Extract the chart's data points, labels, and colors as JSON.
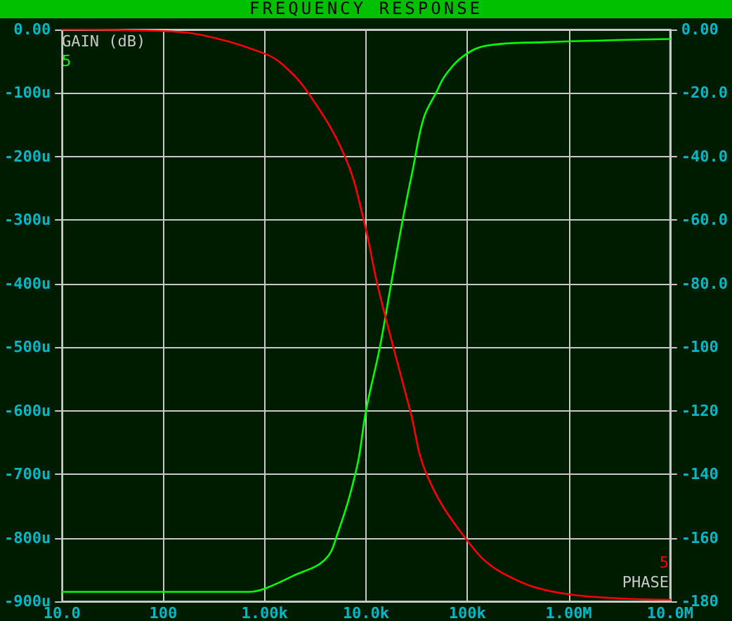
{
  "chart_data": {
    "type": "line",
    "title": "FREQUENCY RESPONSE",
    "ylabel": "GAIN (dB)",
    "y2label": "PHASE",
    "log": "x",
    "grid": true,
    "legend": false,
    "marker": "none",
    "line_style": "solid",
    "xlim": [
      10,
      10000000
    ],
    "xticks": [
      {
        "value": 10,
        "label": "10.0"
      },
      {
        "value": 100,
        "label": "100"
      },
      {
        "value": 1000,
        "label": "1.00k"
      },
      {
        "value": 10000,
        "label": "10.0k"
      },
      {
        "value": 100000,
        "label": "100k"
      },
      {
        "value": 1000000,
        "label": "1.00M"
      },
      {
        "value": 10000000,
        "label": "10.0M"
      }
    ],
    "ylim": [
      -900,
      0
    ],
    "yticks": [
      {
        "value": 0,
        "label": "0.00"
      },
      {
        "value": -100,
        "label": "-100u"
      },
      {
        "value": -200,
        "label": "-200u"
      },
      {
        "value": -300,
        "label": "-300u"
      },
      {
        "value": -400,
        "label": "-400u"
      },
      {
        "value": -500,
        "label": "-500u"
      },
      {
        "value": -600,
        "label": "-600u"
      },
      {
        "value": -700,
        "label": "-700u"
      },
      {
        "value": -800,
        "label": "-800u"
      },
      {
        "value": -900,
        "label": "-900u"
      }
    ],
    "y2lim": [
      -180,
      0
    ],
    "y2ticks": [
      {
        "value": 0,
        "label": "0.00"
      },
      {
        "value": -20,
        "label": "-20.0"
      },
      {
        "value": -40,
        "label": "-40.0"
      },
      {
        "value": -60,
        "label": "-60.0"
      },
      {
        "value": -80,
        "label": "-80.0"
      },
      -100,
      -120,
      -140,
      -160,
      -180
    ],
    "series": [
      {
        "name": "5",
        "color": "#00ff00",
        "x": [
          10,
          100,
          700,
          1000,
          1900,
          3900,
          5200,
          8100,
          10000,
          13700,
          17700,
          23000,
          29000,
          37000,
          49000,
          62000,
          95000,
          160000,
          560000,
          10000000
        ],
        "values": [
          -885,
          -885,
          -885,
          -880,
          -860,
          -835,
          -795,
          -690,
          -600,
          -500,
          -400,
          -300,
          -220,
          -140,
          -100,
          -70,
          -40,
          -25,
          -20,
          -15
        ]
      },
      {
        "name": "5",
        "color": "#ff0000",
        "axis": "y2",
        "x": [
          10,
          100,
          260,
          1000,
          1500,
          2700,
          6200,
          9500,
          12900,
          18600,
          27300,
          39600,
          95000,
          220000,
          1000000,
          10000000
        ],
        "values": [
          0,
          -0.5,
          -2,
          -7.6,
          -11,
          -20,
          -40,
          -60,
          -80,
          -100,
          -120,
          -140,
          -160,
          -171,
          -177.8,
          -179.5
        ]
      }
    ]
  }
}
